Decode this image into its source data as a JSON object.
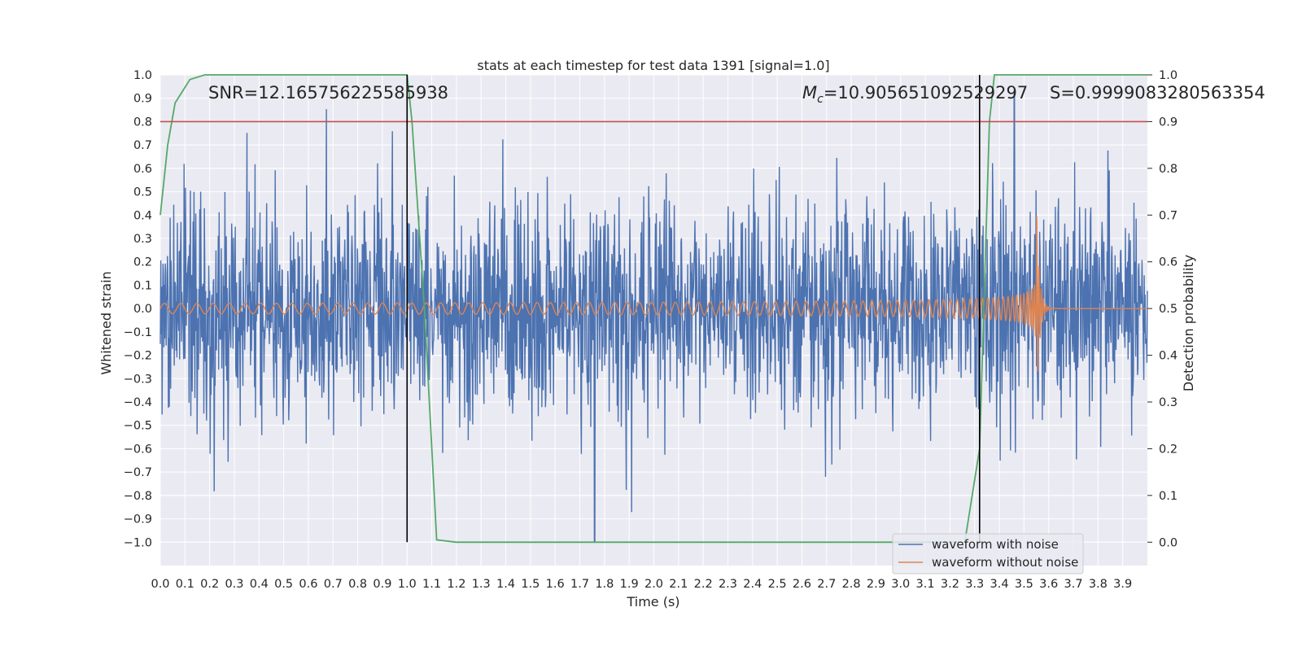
{
  "chart_data": {
    "type": "line",
    "title": "stats at each timestep for test data 1391 [signal=1.0]",
    "xlabel": "Time (s)",
    "ylabel_left": "Whitened strain",
    "ylabel_right": "Detection probability",
    "xlim": [
      0.0,
      4.0
    ],
    "ylim_left": [
      -1.1,
      1.0
    ],
    "ylim_right": [
      -0.05,
      1.0
    ],
    "x_ticks": [
      "0.0",
      "0.1",
      "0.2",
      "0.3",
      "0.4",
      "0.5",
      "0.6",
      "0.7",
      "0.8",
      "0.9",
      "1.0",
      "1.1",
      "1.2",
      "1.3",
      "1.4",
      "1.5",
      "1.6",
      "1.7",
      "1.8",
      "1.9",
      "2.0",
      "2.1",
      "2.2",
      "2.3",
      "2.4",
      "2.5",
      "2.6",
      "2.7",
      "2.8",
      "2.9",
      "3.0",
      "3.1",
      "3.2",
      "3.3",
      "3.4",
      "3.5",
      "3.6",
      "3.7",
      "3.8",
      "3.9"
    ],
    "y_ticks_left": [
      "1.0",
      "0.9",
      "0.8",
      "0.7",
      "0.6",
      "0.5",
      "0.4",
      "0.3",
      "0.2",
      "0.1",
      "0.0",
      "−0.1",
      "−0.2",
      "−0.3",
      "−0.4",
      "−0.5",
      "−0.6",
      "−0.7",
      "−0.8",
      "−0.9",
      "−1.0"
    ],
    "y_ticks_right": [
      "1.0",
      "0.9",
      "0.8",
      "0.7",
      "0.6",
      "0.5",
      "0.4",
      "0.3",
      "0.2",
      "0.1",
      "0.0"
    ],
    "grid": true,
    "legend_position": "lower-right",
    "series": [
      {
        "name": "waveform with noise",
        "axis": "left",
        "color": "#4c72b0",
        "kind": "noise",
        "typical_amplitude": 0.3,
        "max": 0.92,
        "min": -1.0,
        "max_at_x": 3.46,
        "min_at_x": 1.76
      },
      {
        "name": "waveform without noise",
        "axis": "left",
        "color": "#dd8452",
        "kind": "chirp",
        "x_start": 0.0,
        "x_merger": 3.55,
        "amplitude_start": 0.022,
        "amplitude_peak": 0.45,
        "frequency_start_hz": 15,
        "frequency_merger_hz": 110
      },
      {
        "axis": "right",
        "color": "#55a868",
        "x": [
          0.0,
          0.03,
          0.06,
          0.12,
          0.18,
          0.5,
          1.0,
          1.02,
          1.07,
          1.12,
          1.2,
          1.6,
          3.26,
          3.32,
          3.36,
          3.38,
          4.0
        ],
        "y": [
          0.7,
          0.85,
          0.94,
          0.99,
          1.0,
          1.0,
          1.0,
          0.9,
          0.5,
          0.005,
          0.0,
          0.0,
          0.0,
          0.2,
          0.9,
          1.0,
          1.0
        ]
      }
    ],
    "threshold": {
      "axis": "right",
      "value": 0.9,
      "color": "#c44e52"
    },
    "vertical_lines": [
      {
        "x": 1.0,
        "color": "#000000"
      },
      {
        "x": 3.32,
        "color": "#000000"
      }
    ],
    "annotations": {
      "snr": "SNR=12.165756225585938",
      "mc_symbol": "M",
      "mc_sub": "c",
      "mc_value": "=10.905651092529297",
      "s": "S=0.9999083280563354"
    }
  }
}
